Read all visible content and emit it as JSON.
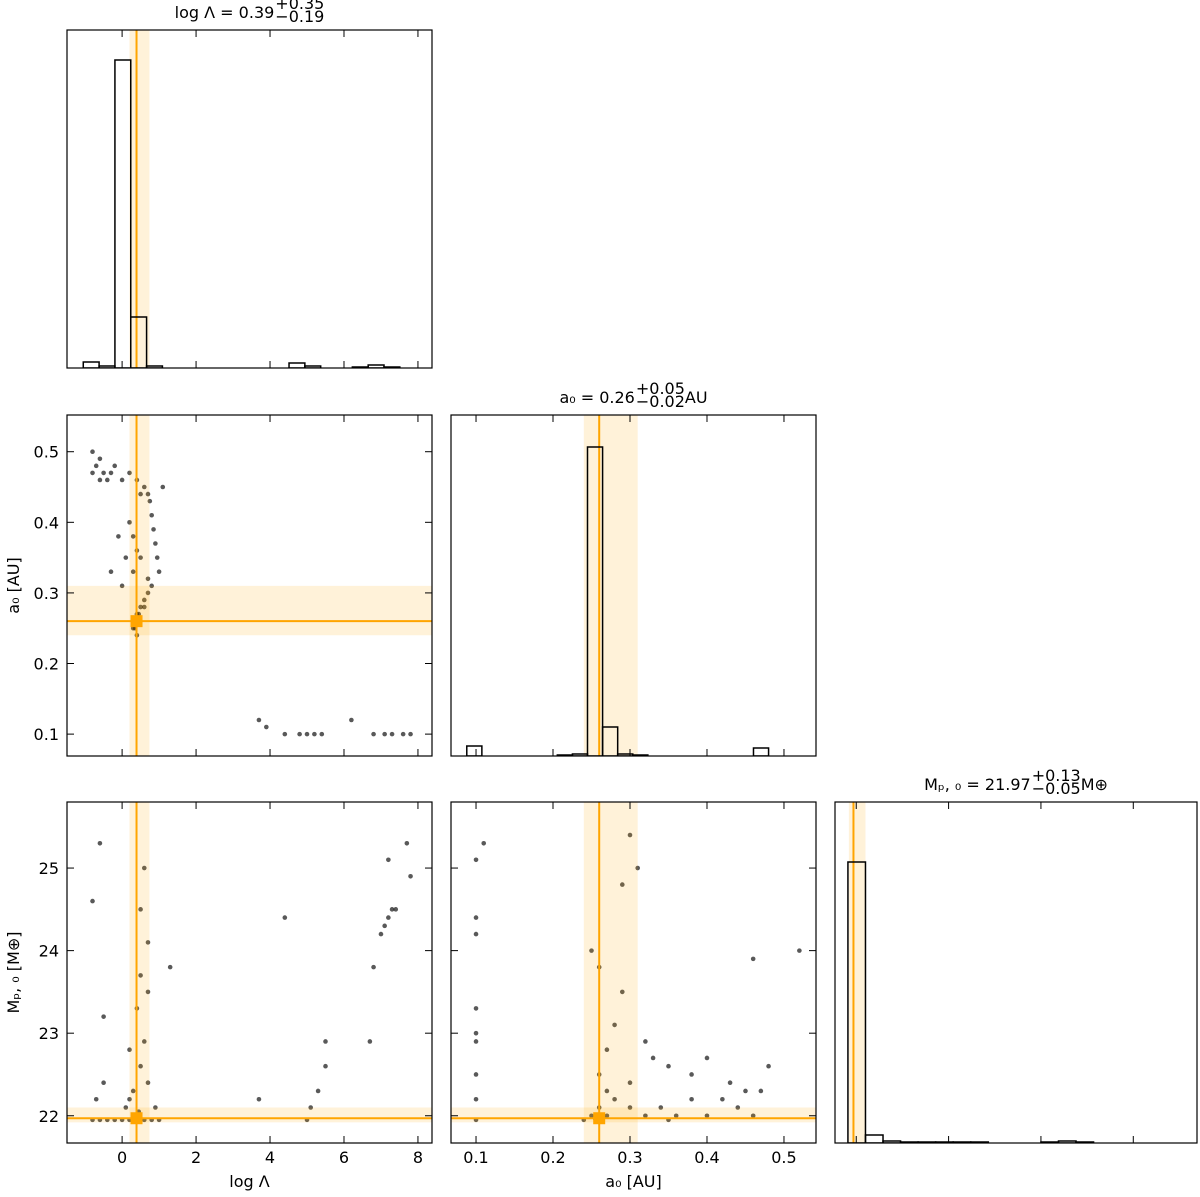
{
  "chart_data": [
    {
      "type": "histogram",
      "title": {
        "text": "log Λ = 0.39",
        "sup": "+0.35",
        "sub": "−0.19"
      },
      "bins": [
        -1.05,
        -0.622,
        -0.194,
        0.234,
        0.662,
        1.09,
        1.518,
        1.946,
        2.374,
        2.802,
        3.23,
        3.658,
        4.086,
        4.514,
        4.942,
        5.37,
        5.798,
        6.226,
        6.654,
        7.082,
        7.51
      ],
      "values": [
        6,
        2,
        308,
        51,
        2,
        0,
        0,
        0,
        0,
        0,
        0,
        0,
        0,
        5,
        2,
        0,
        0,
        1,
        3,
        1
      ],
      "xlim": [
        -1.49,
        8.38
      ],
      "xticks": [
        0,
        2,
        4,
        6,
        8
      ],
      "ylim": [
        0,
        338
      ],
      "quantiles": [
        0.2,
        0.39,
        0.74
      ]
    },
    {
      "type": "scatter",
      "ylabel": "a₀ [AU]",
      "x": [
        -0.8,
        -0.7,
        -0.6,
        -0.5,
        -0.4,
        -0.3,
        -0.8,
        -0.6,
        -0.2,
        0.0,
        0.2,
        0.4,
        0.5,
        0.6,
        0.7,
        0.75,
        0.8,
        0.85,
        0.9,
        0.95,
        1.0,
        1.1,
        0.8,
        0.7,
        0.6,
        0.5,
        0.45,
        0.4,
        0.35,
        0.3,
        0.3,
        0.4,
        0.2,
        0.1,
        -0.1,
        -0.3,
        0.0,
        0.3,
        0.5,
        0.6,
        0.7,
        0.4,
        0.35,
        3.7,
        3.9,
        4.4,
        4.8,
        5.0,
        5.2,
        5.4,
        6.2,
        6.8,
        7.1,
        7.3,
        7.6,
        7.8,
        0.4,
        0.35,
        0.45,
        0.3
      ],
      "y": [
        0.47,
        0.48,
        0.46,
        0.47,
        0.46,
        0.47,
        0.5,
        0.49,
        0.48,
        0.46,
        0.47,
        0.46,
        0.44,
        0.45,
        0.44,
        0.43,
        0.41,
        0.39,
        0.37,
        0.35,
        0.33,
        0.45,
        0.31,
        0.3,
        0.29,
        0.28,
        0.27,
        0.27,
        0.26,
        0.26,
        0.38,
        0.36,
        0.4,
        0.35,
        0.38,
        0.33,
        0.31,
        0.33,
        0.35,
        0.28,
        0.32,
        0.24,
        0.25,
        0.12,
        0.11,
        0.1,
        0.1,
        0.1,
        0.1,
        0.1,
        0.12,
        0.1,
        0.1,
        0.1,
        0.1,
        0.1,
        0.255,
        0.26,
        0.265,
        0.25
      ],
      "xlim": [
        -1.49,
        8.38
      ],
      "xticks": [
        0,
        2,
        4,
        6,
        8
      ],
      "ylim": [
        0.069,
        0.552
      ],
      "yticks": [
        0.1,
        0.2,
        0.3,
        0.4,
        0.5
      ],
      "x_quantiles": [
        0.2,
        0.39,
        0.74
      ],
      "y_quantiles": [
        0.24,
        0.26,
        0.31
      ]
    },
    {
      "type": "histogram",
      "title": {
        "text": "a₀ = 0.26",
        "sup": "+0.05",
        "sub": "−0.02",
        "suffix": " AU"
      },
      "bins": [
        0.088,
        0.1076,
        0.1272,
        0.1468,
        0.1664,
        0.186,
        0.2056,
        0.2252,
        0.2448,
        0.2644,
        0.284,
        0.3036,
        0.3232,
        0.3428,
        0.3624,
        0.382,
        0.4016,
        0.4212,
        0.4408,
        0.4604,
        0.48
      ],
      "values": [
        10,
        0,
        0,
        0,
        0,
        0,
        1,
        2,
        309,
        29,
        2,
        1,
        0,
        0,
        0,
        0,
        0,
        0,
        0,
        8
      ],
      "xlim": [
        0.0675,
        0.5416
      ],
      "xticks": [
        0.1,
        0.2,
        0.3,
        0.4,
        0.5
      ],
      "ylim": [
        0,
        341
      ],
      "quantiles": [
        0.24,
        0.26,
        0.31
      ]
    },
    {
      "type": "scatter",
      "xlabel": "log Λ",
      "ylabel": "Mₚ, ₀ [M⊕]",
      "x": [
        -0.8,
        -0.6,
        -0.4,
        -0.2,
        0.0,
        0.2,
        0.4,
        0.6,
        0.8,
        1.0,
        -0.7,
        -0.5,
        0.1,
        0.3,
        0.5,
        0.7,
        0.9,
        0.6,
        0.4,
        0.2,
        0.5,
        0.7,
        -0.8,
        -0.6,
        0.6,
        1.3,
        -0.5,
        0.5,
        0.7,
        0.2,
        3.7,
        4.4,
        5.0,
        5.1,
        5.3,
        5.5,
        5.5,
        6.7,
        6.8,
        7.0,
        7.1,
        7.2,
        7.3,
        7.4,
        7.2,
        7.8,
        7.7,
        0.4,
        0.3,
        0.45
      ],
      "y": [
        21.95,
        21.95,
        21.95,
        21.95,
        21.95,
        21.95,
        21.95,
        21.95,
        21.95,
        21.95,
        22.2,
        22.4,
        22.1,
        22.3,
        22.6,
        22.4,
        22.1,
        22.9,
        23.3,
        22.8,
        23.7,
        24.1,
        24.6,
        25.3,
        25.0,
        23.8,
        23.2,
        24.5,
        23.5,
        22.2,
        22.2,
        24.4,
        21.95,
        22.1,
        22.3,
        22.6,
        22.9,
        22.9,
        23.8,
        24.2,
        24.3,
        24.4,
        24.5,
        24.5,
        25.1,
        24.9,
        25.3,
        22.0,
        21.98,
        22.05
      ],
      "xlim": [
        -1.49,
        8.38
      ],
      "xticks": [
        0,
        2,
        4,
        6,
        8
      ],
      "ylim": [
        21.67,
        25.8
      ],
      "yticks": [
        22,
        23,
        24,
        25
      ],
      "x_quantiles": [
        0.2,
        0.39,
        0.74
      ],
      "y_quantiles": [
        21.92,
        21.97,
        22.1
      ]
    },
    {
      "type": "scatter",
      "xlabel": "a₀ [AU]",
      "x": [
        0.1,
        0.1,
        0.1,
        0.1,
        0.1,
        0.11,
        0.1,
        0.1,
        0.1,
        0.1,
        0.24,
        0.25,
        0.26,
        0.27,
        0.28,
        0.3,
        0.32,
        0.34,
        0.36,
        0.38,
        0.4,
        0.42,
        0.44,
        0.46,
        0.47,
        0.48,
        0.26,
        0.27,
        0.28,
        0.29,
        0.3,
        0.32,
        0.35,
        0.25,
        0.26,
        0.3,
        0.43,
        0.46,
        0.52,
        0.33,
        0.38,
        0.45,
        0.29,
        0.31,
        0.27,
        0.4,
        0.26,
        0.255,
        0.265,
        0.35
      ],
      "y": [
        21.95,
        22.2,
        22.9,
        23.3,
        24.4,
        25.3,
        24.2,
        25.1,
        22.5,
        23.0,
        21.95,
        22.0,
        22.1,
        22.3,
        22.2,
        22.1,
        22.0,
        22.1,
        22.0,
        22.2,
        22.0,
        22.2,
        22.1,
        22.0,
        22.3,
        22.6,
        22.5,
        22.8,
        23.1,
        23.5,
        22.4,
        22.9,
        22.6,
        24.0,
        23.8,
        25.4,
        22.4,
        23.9,
        24.0,
        22.7,
        22.5,
        22.3,
        24.8,
        25.0,
        22.0,
        22.7,
        21.97,
        21.96,
        21.99,
        21.95
      ],
      "xlim": [
        0.0675,
        0.5416
      ],
      "xticks": [
        0.1,
        0.2,
        0.3,
        0.4,
        0.5
      ],
      "ylim": [
        21.67,
        25.8
      ],
      "yticks": [
        22,
        23,
        24,
        25
      ],
      "x_quantiles": [
        0.24,
        0.26,
        0.31
      ],
      "y_quantiles": [
        21.92,
        21.97,
        22.1
      ]
    },
    {
      "type": "histogram",
      "title": {
        "text": "Mₚ, ₀ = 21.97",
        "sup": "+0.13",
        "sub": "−0.05",
        "suffix": " M⊕"
      },
      "bins": [
        21.91,
        22.1,
        22.29,
        22.48,
        22.67,
        22.86,
        23.05,
        23.24,
        23.43,
        23.62,
        23.81,
        24.0,
        24.19,
        24.38,
        24.57,
        24.76,
        24.95,
        25.14
      ],
      "values": [
        281,
        8,
        2,
        1,
        1,
        1,
        1,
        1,
        0,
        0,
        0,
        1,
        2,
        1,
        0,
        0,
        0
      ],
      "xlim": [
        21.77,
        25.69
      ],
      "xticks": [
        22,
        23,
        24,
        25
      ],
      "ylim": [
        0,
        341
      ],
      "quantiles": [
        21.92,
        21.97,
        22.1
      ]
    }
  ]
}
